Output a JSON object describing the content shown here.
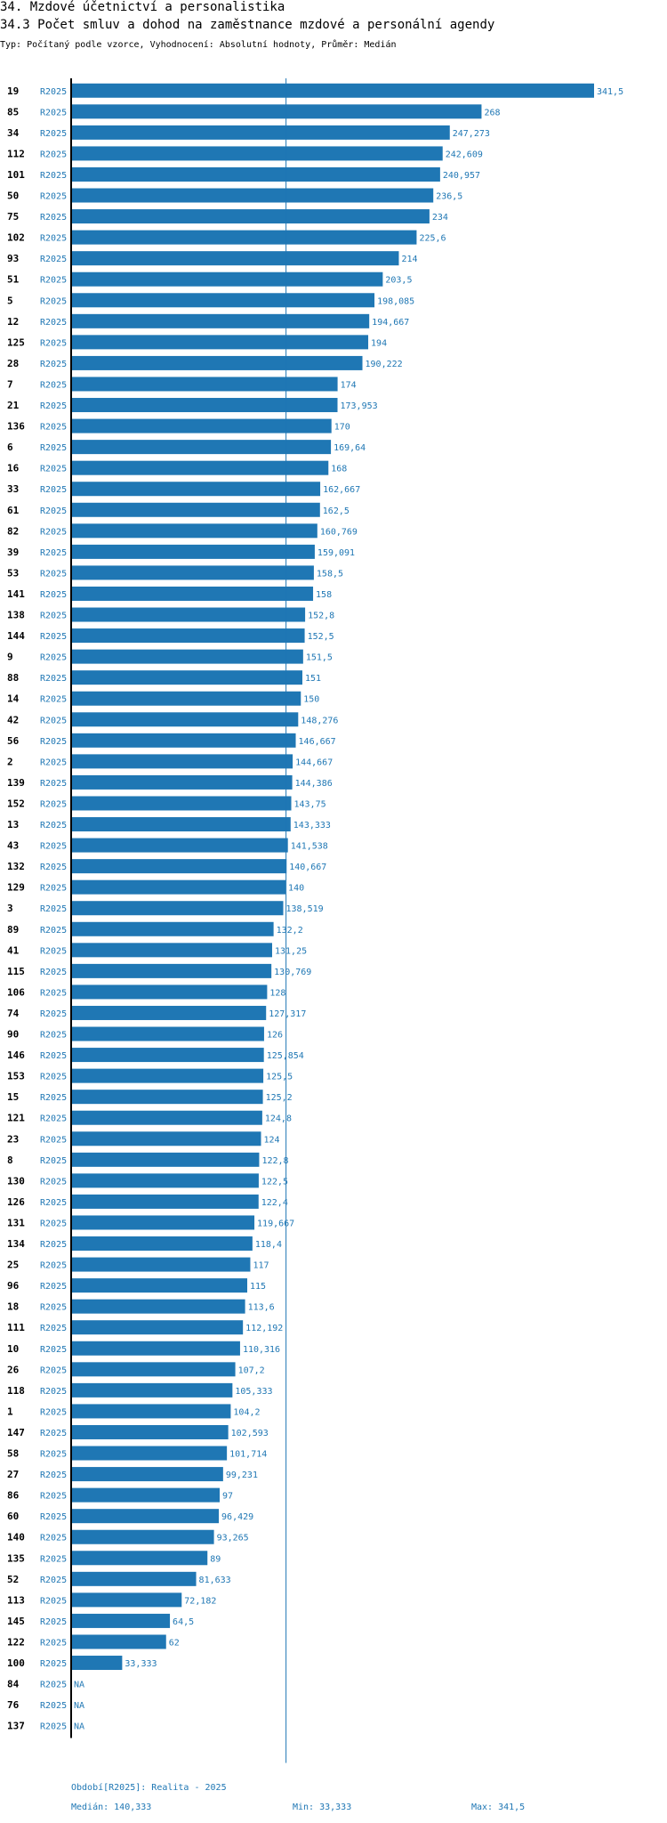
{
  "header": {
    "section_title": "34. Mzdové účetnictví a personalistika",
    "chart_title": "34.3 Počet smluv a dohod na zaměstnance mzdové a personální agendy",
    "subtitle": "Typ: Počítaný podle vzorce, Vyhodnocení: Absolutní hodnoty, Průměr: Medián"
  },
  "footer": {
    "period": "Období[R2025]: Realita - 2025",
    "median": "Medián: 140,333",
    "min": "Min: 33,333",
    "max": "Max: 341,5"
  },
  "colors": {
    "bar": "#1f77b4",
    "label": "#1f77b4",
    "axis": "#000000",
    "median_line": "#1f77b4"
  },
  "chart_data": {
    "type": "bar",
    "orientation": "horizontal",
    "title": "34.3 Počet smluv a dohod na zaměstnance mzdové a personální agendy",
    "series_label": "R2025",
    "xlim": [
      0,
      341.5
    ],
    "median": 140.333,
    "median_label": "140,333",
    "rows": [
      {
        "id": "19",
        "value": 341.5,
        "label": "341,5"
      },
      {
        "id": "85",
        "value": 268,
        "label": "268"
      },
      {
        "id": "34",
        "value": 247.273,
        "label": "247,273"
      },
      {
        "id": "112",
        "value": 242.609,
        "label": "242,609"
      },
      {
        "id": "101",
        "value": 240.957,
        "label": "240,957"
      },
      {
        "id": "50",
        "value": 236.5,
        "label": "236,5"
      },
      {
        "id": "75",
        "value": 234,
        "label": "234"
      },
      {
        "id": "102",
        "value": 225.6,
        "label": "225,6"
      },
      {
        "id": "93",
        "value": 214,
        "label": "214"
      },
      {
        "id": "51",
        "value": 203.5,
        "label": "203,5"
      },
      {
        "id": "5",
        "value": 198.085,
        "label": "198,085"
      },
      {
        "id": "12",
        "value": 194.667,
        "label": "194,667"
      },
      {
        "id": "125",
        "value": 194,
        "label": "194"
      },
      {
        "id": "28",
        "value": 190.222,
        "label": "190,222"
      },
      {
        "id": "7",
        "value": 174,
        "label": "174"
      },
      {
        "id": "21",
        "value": 173.953,
        "label": "173,953"
      },
      {
        "id": "136",
        "value": 170,
        "label": "170"
      },
      {
        "id": "6",
        "value": 169.64,
        "label": "169,64"
      },
      {
        "id": "16",
        "value": 168,
        "label": "168"
      },
      {
        "id": "33",
        "value": 162.667,
        "label": "162,667"
      },
      {
        "id": "61",
        "value": 162.5,
        "label": "162,5"
      },
      {
        "id": "82",
        "value": 160.769,
        "label": "160,769"
      },
      {
        "id": "39",
        "value": 159.091,
        "label": "159,091"
      },
      {
        "id": "53",
        "value": 158.5,
        "label": "158,5"
      },
      {
        "id": "141",
        "value": 158,
        "label": "158"
      },
      {
        "id": "138",
        "value": 152.8,
        "label": "152,8"
      },
      {
        "id": "144",
        "value": 152.5,
        "label": "152,5"
      },
      {
        "id": "9",
        "value": 151.5,
        "label": "151,5"
      },
      {
        "id": "88",
        "value": 151,
        "label": "151"
      },
      {
        "id": "14",
        "value": 150,
        "label": "150"
      },
      {
        "id": "42",
        "value": 148.276,
        "label": "148,276"
      },
      {
        "id": "56",
        "value": 146.667,
        "label": "146,667"
      },
      {
        "id": "2",
        "value": 144.667,
        "label": "144,667"
      },
      {
        "id": "139",
        "value": 144.386,
        "label": "144,386"
      },
      {
        "id": "152",
        "value": 143.75,
        "label": "143,75"
      },
      {
        "id": "13",
        "value": 143.333,
        "label": "143,333"
      },
      {
        "id": "43",
        "value": 141.538,
        "label": "141,538"
      },
      {
        "id": "132",
        "value": 140.667,
        "label": "140,667"
      },
      {
        "id": "129",
        "value": 140,
        "label": "140"
      },
      {
        "id": "3",
        "value": 138.519,
        "label": "138,519"
      },
      {
        "id": "89",
        "value": 132.2,
        "label": "132,2"
      },
      {
        "id": "41",
        "value": 131.25,
        "label": "131,25"
      },
      {
        "id": "115",
        "value": 130.769,
        "label": "130,769"
      },
      {
        "id": "106",
        "value": 128,
        "label": "128"
      },
      {
        "id": "74",
        "value": 127.317,
        "label": "127,317"
      },
      {
        "id": "90",
        "value": 126,
        "label": "126"
      },
      {
        "id": "146",
        "value": 125.854,
        "label": "125,854"
      },
      {
        "id": "153",
        "value": 125.5,
        "label": "125,5"
      },
      {
        "id": "15",
        "value": 125.2,
        "label": "125,2"
      },
      {
        "id": "121",
        "value": 124.8,
        "label": "124,8"
      },
      {
        "id": "23",
        "value": 124,
        "label": "124"
      },
      {
        "id": "8",
        "value": 122.8,
        "label": "122,8"
      },
      {
        "id": "130",
        "value": 122.5,
        "label": "122,5"
      },
      {
        "id": "126",
        "value": 122.4,
        "label": "122,4"
      },
      {
        "id": "131",
        "value": 119.667,
        "label": "119,667"
      },
      {
        "id": "134",
        "value": 118.4,
        "label": "118,4"
      },
      {
        "id": "25",
        "value": 117,
        "label": "117"
      },
      {
        "id": "96",
        "value": 115,
        "label": "115"
      },
      {
        "id": "18",
        "value": 113.6,
        "label": "113,6"
      },
      {
        "id": "111",
        "value": 112.192,
        "label": "112,192"
      },
      {
        "id": "10",
        "value": 110.316,
        "label": "110,316"
      },
      {
        "id": "26",
        "value": 107.2,
        "label": "107,2"
      },
      {
        "id": "118",
        "value": 105.333,
        "label": "105,333"
      },
      {
        "id": "1",
        "value": 104.2,
        "label": "104,2"
      },
      {
        "id": "147",
        "value": 102.593,
        "label": "102,593"
      },
      {
        "id": "58",
        "value": 101.714,
        "label": "101,714"
      },
      {
        "id": "27",
        "value": 99.231,
        "label": "99,231"
      },
      {
        "id": "86",
        "value": 97,
        "label": "97"
      },
      {
        "id": "60",
        "value": 96.429,
        "label": "96,429"
      },
      {
        "id": "140",
        "value": 93.265,
        "label": "93,265"
      },
      {
        "id": "135",
        "value": 89,
        "label": "89"
      },
      {
        "id": "52",
        "value": 81.633,
        "label": "81,633"
      },
      {
        "id": "113",
        "value": 72.182,
        "label": "72,182"
      },
      {
        "id": "145",
        "value": 64.5,
        "label": "64,5"
      },
      {
        "id": "122",
        "value": 62,
        "label": "62"
      },
      {
        "id": "100",
        "value": 33.333,
        "label": "33,333"
      },
      {
        "id": "84",
        "value": null,
        "label": "NA"
      },
      {
        "id": "76",
        "value": null,
        "label": "NA"
      },
      {
        "id": "137",
        "value": null,
        "label": "NA"
      }
    ]
  }
}
